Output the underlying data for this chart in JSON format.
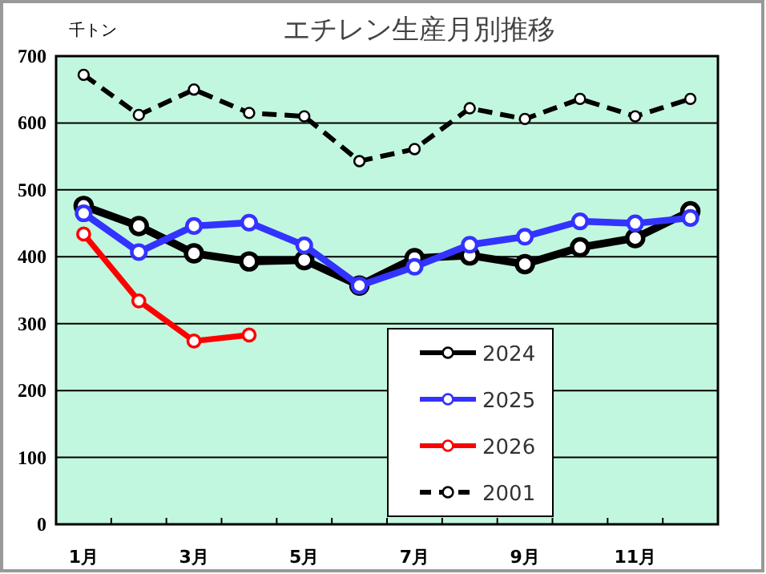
{
  "chart_data": {
    "type": "line",
    "title": "エチレン生産月別推移",
    "ylabel": "千トン",
    "categories": [
      "1月",
      null,
      "3月",
      null,
      "5月",
      null,
      "7月",
      null,
      "9月",
      null,
      "11月",
      null
    ],
    "series": [
      {
        "name": "2024",
        "color": "#000000",
        "values": [
          476,
          446,
          405,
          393,
          395,
          357,
          398,
          402,
          389,
          414,
          428,
          468
        ]
      },
      {
        "name": "2025",
        "color": "#3333ff",
        "values": [
          465,
          407,
          446,
          451,
          417,
          357,
          385,
          418,
          430,
          453,
          450,
          458
        ]
      },
      {
        "name": "2026",
        "color": "#ff0000",
        "values": [
          434,
          334,
          274,
          283,
          null,
          null,
          null,
          null,
          null,
          null,
          null,
          null
        ]
      },
      {
        "name": "2001",
        "color": "#000000",
        "line_style": "dashed",
        "values": [
          672,
          612,
          650,
          615,
          610,
          543,
          561,
          622,
          606,
          636,
          610,
          636
        ]
      }
    ],
    "ylim": [
      0,
      700
    ],
    "yticks": [
      0,
      100,
      200,
      300,
      400,
      500,
      600,
      700
    ],
    "grid": "y",
    "legend": "bottom",
    "marker": "circle",
    "line_style": "solid"
  }
}
